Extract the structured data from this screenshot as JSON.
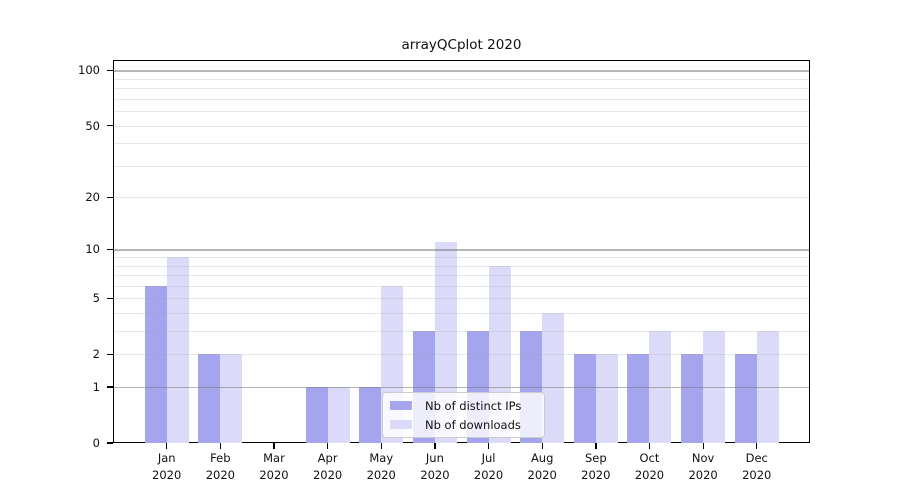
{
  "figure": {
    "background": "#ffffff",
    "axis_color": "#000000",
    "text_color": "#111111"
  },
  "chart_data": {
    "type": "bar",
    "title": "arrayQCplot 2020",
    "categories": [
      "Jan",
      "Feb",
      "Mar",
      "Apr",
      "May",
      "Jun",
      "Jul",
      "Aug",
      "Sep",
      "Oct",
      "Nov",
      "Dec"
    ],
    "category_year": "2020",
    "series": [
      {
        "name": "Nb of distinct IPs",
        "color": "#a5a5ee",
        "values": [
          6,
          2,
          0,
          1,
          1,
          3,
          3,
          3,
          2,
          2,
          2,
          2
        ]
      },
      {
        "name": "Nb of downloads",
        "color": "#dbdbf9",
        "values": [
          9,
          2,
          0,
          1,
          6,
          11,
          8,
          4,
          2,
          3,
          3,
          3
        ]
      }
    ],
    "xlabel": "",
    "ylabel": "",
    "y_axis": {
      "scale": "log1p",
      "tick_values": [
        0,
        1,
        2,
        5,
        10,
        20,
        50,
        100
      ],
      "tick_labels": [
        "0",
        "1",
        "2",
        "5",
        "10",
        "20",
        "50",
        "100"
      ],
      "top_value": 114
    },
    "grid": {
      "enabled": true,
      "major_lines": [
        1,
        10,
        100
      ],
      "minor_lines": [
        2,
        3,
        4,
        5,
        6,
        7,
        8,
        9,
        20,
        30,
        40,
        50,
        60,
        70,
        80,
        90
      ],
      "major_color": "rgba(120,120,120,0.55)",
      "minor_color": "rgba(165,165,165,0.25)"
    },
    "legend": {
      "position": "inside-bottom-center",
      "entries": [
        "Nb of distinct IPs",
        "Nb of downloads"
      ]
    }
  }
}
